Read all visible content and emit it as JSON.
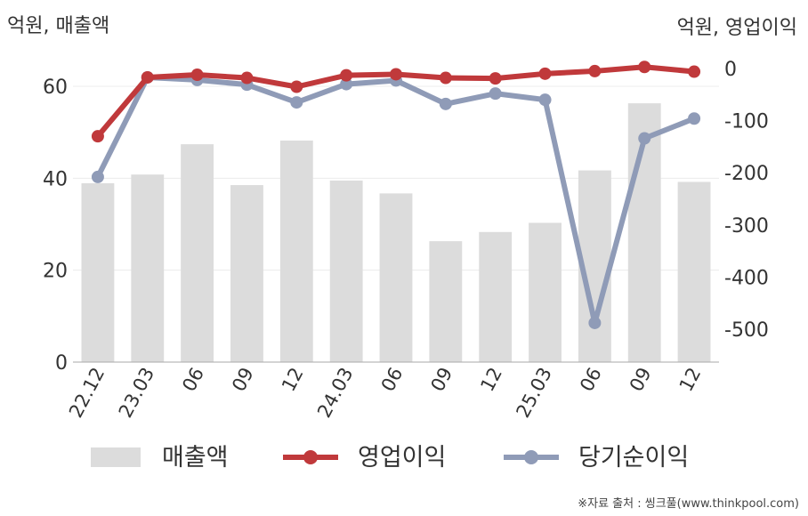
{
  "chart_data": {
    "type": "bar",
    "categories": [
      "22.12",
      "23.03",
      "06",
      "09",
      "12",
      "24.03",
      "06",
      "09",
      "12",
      "25.03",
      "06",
      "09",
      "12"
    ],
    "y_left_label": "억원, 매출액",
    "y_right_label": "억원, 영업이익",
    "y_left_ticks": [
      "0",
      "20",
      "40",
      "60"
    ],
    "y_left_range": [
      0,
      63
    ],
    "y_right_ticks": [
      "0",
      "-100",
      "-200",
      "-300",
      "-400",
      "-500"
    ],
    "y_right_range": [
      -565,
      0
    ],
    "grid": true,
    "legend_position": "bottom",
    "series": [
      {
        "name": "매출액",
        "type": "bar",
        "axis": "left",
        "color": "#dcdcdc",
        "values": [
          38.9,
          40.8,
          47.4,
          38.5,
          48.2,
          39.5,
          36.7,
          26.3,
          28.3,
          30.3,
          41.7,
          56.3,
          39.2
        ]
      },
      {
        "name": "영업이익",
        "type": "line",
        "axis": "right",
        "color": "#c0393b",
        "values": [
          -130,
          -17,
          -12,
          -18,
          -35,
          -13,
          -11,
          -18,
          -19,
          -10,
          -5,
          3,
          -6
        ]
      },
      {
        "name": "당기순이익",
        "type": "line",
        "axis": "right",
        "color": "#8f9bb7",
        "values": [
          -208,
          -17,
          -22,
          -31,
          -65,
          -30,
          -23,
          -68,
          -48,
          -60,
          -488,
          -134,
          -96
        ]
      }
    ]
  },
  "source": "※자료 출처 : 씽크풀(www.thinkpool.com)"
}
